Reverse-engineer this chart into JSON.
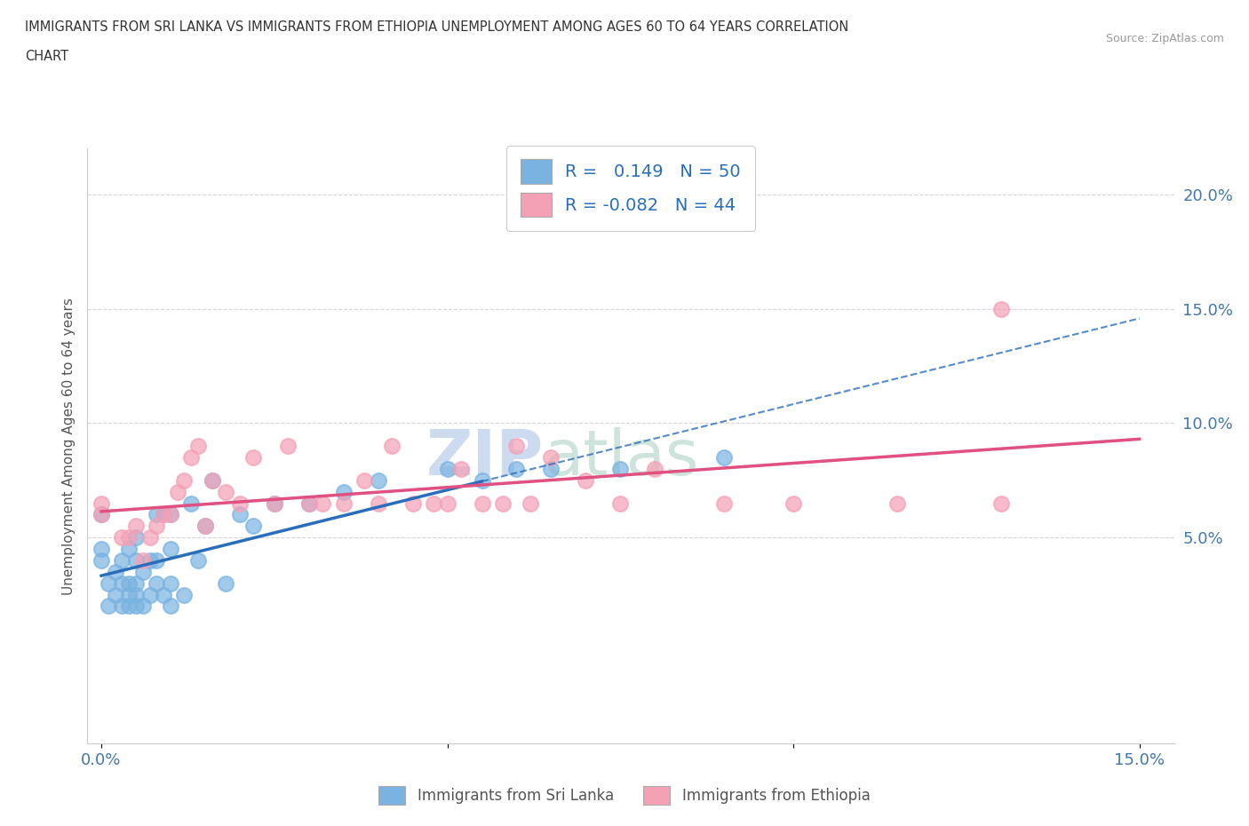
{
  "title_line1": "IMMIGRANTS FROM SRI LANKA VS IMMIGRANTS FROM ETHIOPIA UNEMPLOYMENT AMONG AGES 60 TO 64 YEARS CORRELATION",
  "title_line2": "CHART",
  "source": "Source: ZipAtlas.com",
  "ylabel": "Unemployment Among Ages 60 to 64 years",
  "xlim": [
    -0.002,
    0.155
  ],
  "ylim": [
    -0.04,
    0.22
  ],
  "xticks": [
    0.0,
    0.05,
    0.1,
    0.15
  ],
  "xticklabels": [
    "0.0%",
    "",
    "",
    "15.0%"
  ],
  "yticks": [
    0.05,
    0.1,
    0.15,
    0.2
  ],
  "yticklabels": [
    "5.0%",
    "10.0%",
    "15.0%",
    "20.0%"
  ],
  "sri_lanka_R": 0.149,
  "sri_lanka_N": 50,
  "ethiopia_R": -0.082,
  "ethiopia_N": 44,
  "sri_lanka_color": "#7ab3e0",
  "ethiopia_color": "#f4a0b5",
  "sri_lanka_line_color": "#2a6ebb",
  "ethiopia_line_color": "#e05080",
  "watermark_zip": "ZIP",
  "watermark_atlas": "atlas",
  "sri_lanka_x": [
    0.0,
    0.0,
    0.0,
    0.001,
    0.001,
    0.002,
    0.002,
    0.003,
    0.003,
    0.003,
    0.004,
    0.004,
    0.004,
    0.004,
    0.005,
    0.005,
    0.005,
    0.005,
    0.005,
    0.006,
    0.006,
    0.007,
    0.007,
    0.008,
    0.008,
    0.008,
    0.009,
    0.009,
    0.01,
    0.01,
    0.01,
    0.01,
    0.012,
    0.013,
    0.014,
    0.015,
    0.016,
    0.018,
    0.02,
    0.022,
    0.025,
    0.03,
    0.035,
    0.04,
    0.05,
    0.055,
    0.06,
    0.065,
    0.075,
    0.09
  ],
  "sri_lanka_y": [
    0.04,
    0.045,
    0.06,
    0.02,
    0.03,
    0.025,
    0.035,
    0.02,
    0.03,
    0.04,
    0.02,
    0.025,
    0.03,
    0.045,
    0.02,
    0.025,
    0.03,
    0.04,
    0.05,
    0.02,
    0.035,
    0.025,
    0.04,
    0.03,
    0.04,
    0.06,
    0.025,
    0.06,
    0.02,
    0.03,
    0.045,
    0.06,
    0.025,
    0.065,
    0.04,
    0.055,
    0.075,
    0.03,
    0.06,
    0.055,
    0.065,
    0.065,
    0.07,
    0.075,
    0.08,
    0.075,
    0.08,
    0.08,
    0.08,
    0.085
  ],
  "ethiopia_x": [
    0.0,
    0.0,
    0.003,
    0.004,
    0.005,
    0.006,
    0.007,
    0.008,
    0.009,
    0.01,
    0.011,
    0.012,
    0.013,
    0.014,
    0.015,
    0.016,
    0.018,
    0.02,
    0.022,
    0.025,
    0.027,
    0.03,
    0.032,
    0.035,
    0.038,
    0.04,
    0.042,
    0.045,
    0.048,
    0.05,
    0.052,
    0.055,
    0.058,
    0.06,
    0.062,
    0.065,
    0.07,
    0.075,
    0.08,
    0.09,
    0.1,
    0.115,
    0.13,
    0.13
  ],
  "ethiopia_y": [
    0.06,
    0.065,
    0.05,
    0.05,
    0.055,
    0.04,
    0.05,
    0.055,
    0.06,
    0.06,
    0.07,
    0.075,
    0.085,
    0.09,
    0.055,
    0.075,
    0.07,
    0.065,
    0.085,
    0.065,
    0.09,
    0.065,
    0.065,
    0.065,
    0.075,
    0.065,
    0.09,
    0.065,
    0.065,
    0.065,
    0.08,
    0.065,
    0.065,
    0.09,
    0.065,
    0.085,
    0.075,
    0.065,
    0.08,
    0.065,
    0.065,
    0.065,
    0.065,
    0.15
  ]
}
